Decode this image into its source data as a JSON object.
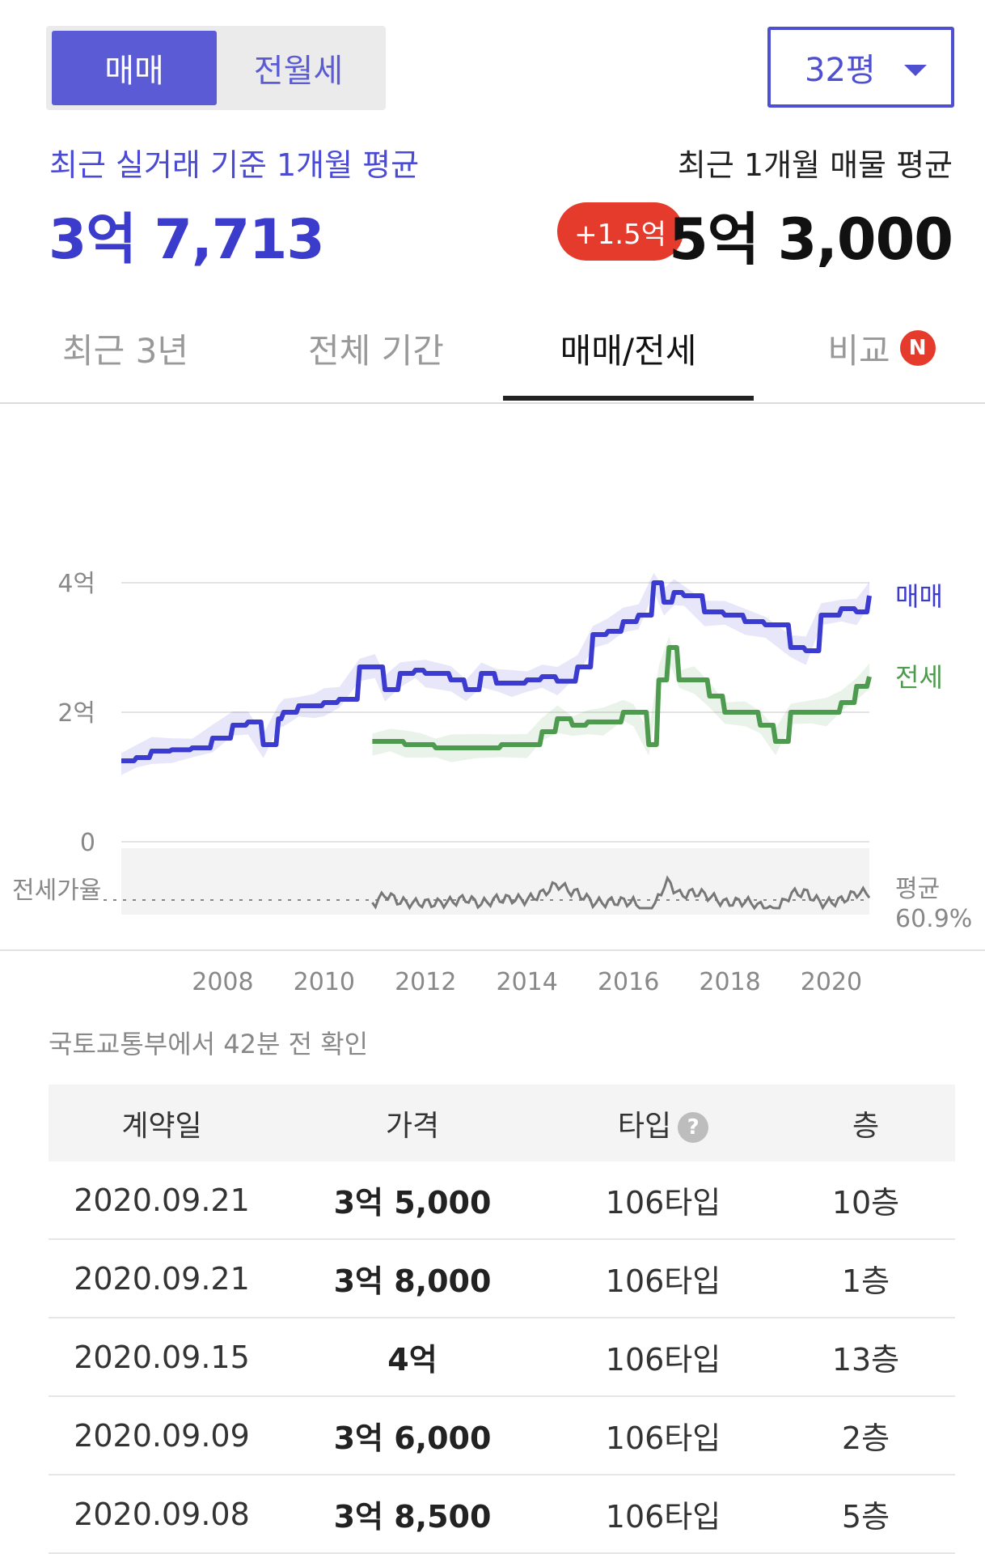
{
  "toggle": {
    "active": "매매",
    "inactive": "전월세"
  },
  "size_select": {
    "value": "32평"
  },
  "summary": {
    "left_label": "최근 실거래 기준 1개월 평균",
    "left_value": "3억 7,713",
    "right_label": "최근 1개월 매물 평균",
    "badge": "+1.5억",
    "right_value": "5억 3,000"
  },
  "tabs": [
    {
      "label": "최근 3년"
    },
    {
      "label": "전체 기간"
    },
    {
      "label": "매매/전세",
      "active": true
    },
    {
      "label": "비교",
      "badge": "N"
    }
  ],
  "chart_data": {
    "type": "line",
    "y_ticks": [
      "4억",
      "2억",
      "0"
    ],
    "ylim": [
      0,
      4
    ],
    "x_ticks": [
      "2008",
      "2010",
      "2012",
      "2014",
      "2016",
      "2018",
      "2020"
    ],
    "sub_label": "전세가율",
    "sub_avg_label": "평균",
    "sub_avg_value": "60.9%",
    "series": [
      {
        "name": "매매",
        "color": "#3b3bd0",
        "x": [
          2006.0,
          2006.3,
          2006.6,
          2007.0,
          2007.4,
          2007.8,
          2008.2,
          2008.5,
          2008.8,
          2009.1,
          2009.2,
          2009.5,
          2009.8,
          2010.0,
          2010.3,
          2010.7,
          2011.0,
          2011.2,
          2011.5,
          2011.8,
          2012.0,
          2012.5,
          2012.8,
          2013.1,
          2013.4,
          2013.7,
          2014.0,
          2014.3,
          2014.6,
          2015.0,
          2015.3,
          2015.6,
          2015.9,
          2016.2,
          2016.5,
          2016.7,
          2016.9,
          2017.1,
          2017.5,
          2017.9,
          2018.3,
          2018.7,
          2019.2,
          2019.5,
          2019.8,
          2020.2,
          2020.5,
          2020.75
        ],
        "values": [
          1.25,
          1.3,
          1.4,
          1.42,
          1.45,
          1.6,
          1.8,
          1.85,
          1.5,
          1.9,
          2.0,
          2.1,
          2.1,
          2.15,
          2.2,
          2.7,
          2.7,
          2.35,
          2.6,
          2.65,
          2.6,
          2.5,
          2.35,
          2.6,
          2.45,
          2.45,
          2.5,
          2.55,
          2.48,
          2.7,
          3.2,
          3.25,
          3.4,
          3.5,
          4.0,
          3.7,
          3.85,
          3.8,
          3.55,
          3.5,
          3.4,
          3.35,
          3.0,
          2.95,
          3.5,
          3.6,
          3.55,
          3.8
        ]
      },
      {
        "name": "전세",
        "color": "#4e9a4e",
        "x": [
          2010.95,
          2011.3,
          2011.6,
          2011.9,
          2012.2,
          2012.5,
          2013.0,
          2013.5,
          2014.0,
          2014.3,
          2014.6,
          2014.9,
          2015.2,
          2015.5,
          2015.9,
          2016.1,
          2016.4,
          2016.6,
          2016.8,
          2017.0,
          2017.3,
          2017.6,
          2017.9,
          2018.3,
          2018.6,
          2018.9,
          2019.2,
          2019.6,
          2019.9,
          2020.2,
          2020.5,
          2020.75
        ],
        "values": [
          1.55,
          1.55,
          1.5,
          1.5,
          1.45,
          1.45,
          1.45,
          1.5,
          1.5,
          1.7,
          1.9,
          1.8,
          1.85,
          1.85,
          2.0,
          2.0,
          1.5,
          2.5,
          3.0,
          2.5,
          2.5,
          2.25,
          2.0,
          2.0,
          1.8,
          1.55,
          2.0,
          2.0,
          2.0,
          2.15,
          2.4,
          2.55
        ]
      }
    ]
  },
  "source": "국토교통부에서 42분 전 확인",
  "table": {
    "headers": [
      "계약일",
      "가격",
      "타입",
      "층"
    ],
    "help": "?",
    "rows": [
      [
        "2020.09.21",
        "3억 5,000",
        "106타입",
        "10층"
      ],
      [
        "2020.09.21",
        "3억 8,000",
        "106타입",
        "1층"
      ],
      [
        "2020.09.15",
        "4억",
        "106타입",
        "13층"
      ],
      [
        "2020.09.09",
        "3억 6,000",
        "106타입",
        "2층"
      ],
      [
        "2020.09.08",
        "3억 8,500",
        "106타입",
        "5층"
      ]
    ]
  }
}
